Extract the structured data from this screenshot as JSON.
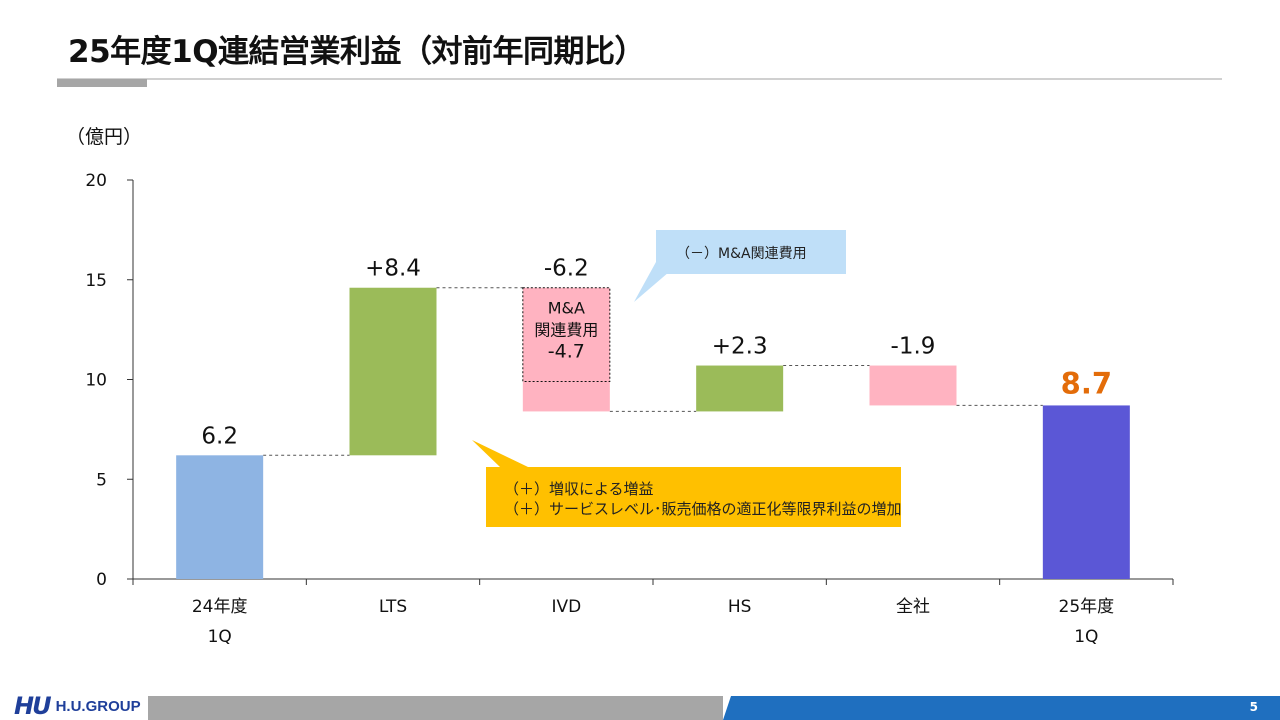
{
  "page": {
    "title": "25年度1Q連結営業利益（対前年同期比）",
    "page_number": "5"
  },
  "logo": {
    "mark": "HU",
    "text": "H.U.GROUP"
  },
  "colors": {
    "base": "#8eb4e3",
    "positive": "#9bbb59",
    "negative": "#ffb3c1",
    "result": "#5b57d6",
    "result_label": "#e36c09",
    "callout_blue": "#bfdff8",
    "callout_yellow": "#ffc000"
  },
  "chart_data": {
    "type": "bar",
    "subtype": "waterfall",
    "unit_label": "（億円）",
    "ylim": [
      0,
      20
    ],
    "yticks": [
      "0",
      "5",
      "10",
      "15",
      "20"
    ],
    "categories": [
      {
        "lines": [
          "24年度",
          "1Q"
        ]
      },
      {
        "lines": [
          "LTS"
        ]
      },
      {
        "lines": [
          "IVD"
        ]
      },
      {
        "lines": [
          "HS"
        ]
      },
      {
        "lines": [
          "全社"
        ]
      },
      {
        "lines": [
          "25年度",
          "1Q"
        ]
      }
    ],
    "bars": [
      {
        "kind": "base",
        "start": 0,
        "end": 6.2,
        "label": "6.2"
      },
      {
        "kind": "positive",
        "start": 6.2,
        "end": 14.6,
        "label": "+8.4"
      },
      {
        "kind": "negative",
        "start": 14.6,
        "end": 8.4,
        "label": "-6.2"
      },
      {
        "kind": "positive",
        "start": 8.4,
        "end": 10.7,
        "label": "+2.3"
      },
      {
        "kind": "negative",
        "start": 10.7,
        "end": 8.7,
        "label": "-1.9"
      },
      {
        "kind": "result",
        "start": 0,
        "end": 8.7,
        "label": "8.7"
      }
    ],
    "breakdown": {
      "bar_index": 2,
      "start": 14.6,
      "end": 9.9,
      "lines": [
        "M&A",
        "関連費用",
        "-4.7"
      ]
    },
    "callouts": {
      "ma_costs": "（－）M&A関連費用",
      "revenue": [
        "（＋）増収による増益",
        "（＋）サービスレベル･販売価格の適正化等限界利益の増加"
      ]
    }
  }
}
